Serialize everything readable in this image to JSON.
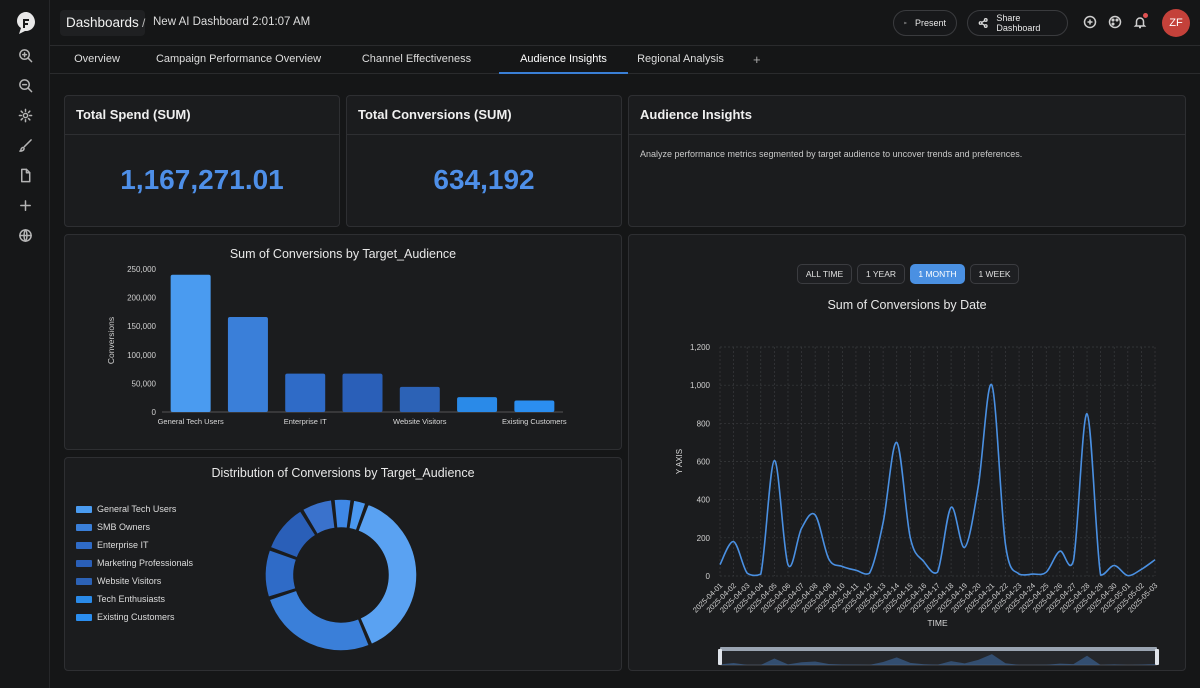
{
  "header": {
    "breadcrumb_root": "Dashboards",
    "separator": "/",
    "page_title": "New AI Dashboard 2:01:07 AM",
    "present_label": "Present",
    "share_label": "Share Dashboard",
    "avatar_initials": "ZF"
  },
  "tabs": [
    {
      "label": "Overview"
    },
    {
      "label": "Campaign Performance Overview"
    },
    {
      "label": "Channel Effectiveness"
    },
    {
      "label": "Audience Insights"
    },
    {
      "label": "Regional Analysis"
    }
  ],
  "tab_add": "+",
  "kpis": {
    "spend": {
      "title": "Total Spend (SUM)",
      "value": "1,167,271.01"
    },
    "conversions": {
      "title": "Total Conversions (SUM)",
      "value": "634,192"
    }
  },
  "insights": {
    "title": "Audience Insights",
    "description": "Analyze performance metrics segmented by target audience to uncover trends and preferences."
  },
  "range_buttons": [
    "ALL TIME",
    "1 YEAR",
    "1 MONTH",
    "1 WEEK"
  ],
  "colors": {
    "accent": "#4a90e2",
    "kpi": "#4e8fe8",
    "bars": [
      "#4a9bf0",
      "#3a7fd9",
      "#2f6bc7",
      "#2a5fb8",
      "#2c62b6",
      "#2a8ae8",
      "#2b8ef0"
    ],
    "line": "#4a90e2"
  },
  "chart_data": [
    {
      "type": "bar",
      "title": "Sum of Conversions by Target_Audience",
      "ylabel": "Conversions",
      "xlabel": "",
      "ylim": [
        0,
        250000
      ],
      "yticks": [
        "0",
        "50,000",
        "100,000",
        "150,000",
        "200,000",
        "250,000"
      ],
      "categories": [
        "General Tech Users",
        "SMB Owners",
        "Enterprise IT",
        "Marketing Professionals",
        "Website Visitors",
        "Tech Enthusiasts",
        "Existing Customers"
      ],
      "shown_x_labels": [
        "General Tech Users",
        "Enterprise IT",
        "Website Visitors",
        "Existing Customers"
      ],
      "values": [
        240000,
        166000,
        67000,
        67000,
        44000,
        26000,
        20000
      ]
    },
    {
      "type": "pie",
      "title": "Distribution of Conversions by Target_Audience",
      "categories": [
        "General Tech Users",
        "SMB Owners",
        "Enterprise IT",
        "Marketing Professionals",
        "Website Visitors",
        "Tech Enthusiasts",
        "Existing Customers"
      ],
      "values": [
        240000,
        166000,
        67000,
        67000,
        44000,
        26000,
        20000
      ],
      "legend": "left"
    },
    {
      "type": "line",
      "title": "Sum of Conversions by Date",
      "xlabel": "TIME",
      "ylabel": "Y AXIS",
      "ylim": [
        0,
        1200
      ],
      "yticks": [
        "0",
        "200",
        "400",
        "600",
        "800",
        "1,000",
        "1,200"
      ],
      "x": [
        "2025-04-01",
        "2025-04-02",
        "2025-04-03",
        "2025-04-04",
        "2025-04-05",
        "2025-04-06",
        "2025-04-07",
        "2025-04-08",
        "2025-04-09",
        "2025-04-10",
        "2025-04-11",
        "2025-04-12",
        "2025-04-13",
        "2025-04-14",
        "2025-04-15",
        "2025-04-16",
        "2025-04-17",
        "2025-04-18",
        "2025-04-19",
        "2025-04-20",
        "2025-04-21",
        "2025-04-22",
        "2025-04-23",
        "2025-04-24",
        "2025-04-25",
        "2025-04-26",
        "2025-04-27",
        "2025-04-28",
        "2025-04-29",
        "2025-04-30",
        "2025-05-01",
        "2025-05-02",
        "2025-05-03"
      ],
      "values": [
        60,
        180,
        15,
        10,
        605,
        60,
        250,
        320,
        90,
        50,
        30,
        15,
        280,
        700,
        200,
        75,
        20,
        360,
        150,
        470,
        1000,
        165,
        10,
        10,
        20,
        130,
        80,
        850,
        5,
        55,
        2,
        35,
        85
      ]
    }
  ]
}
